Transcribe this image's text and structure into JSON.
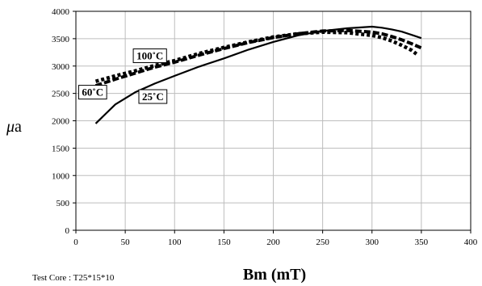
{
  "chart_data": {
    "type": "line",
    "xlabel": "Bm (mT)",
    "ylabel_mu": "μ",
    "ylabel_rest": "a",
    "note": "Test Core : T25*15*10",
    "xlim": [
      0,
      400
    ],
    "ylim": [
      0,
      4000
    ],
    "xticks": [
      0,
      50,
      100,
      150,
      200,
      250,
      300,
      350,
      400
    ],
    "yticks": [
      0,
      500,
      1000,
      1500,
      2000,
      2500,
      3000,
      3500,
      4000
    ],
    "grid": true,
    "series": [
      {
        "name": "25˚C",
        "style": "solid",
        "color": "#000000",
        "x": [
          20,
          40,
          60,
          80,
          100,
          125,
          150,
          175,
          200,
          225,
          250,
          275,
          300,
          310,
          320,
          330,
          340,
          350
        ],
        "y": [
          1950,
          2300,
          2520,
          2680,
          2820,
          2990,
          3140,
          3300,
          3440,
          3560,
          3640,
          3690,
          3720,
          3700,
          3670,
          3630,
          3570,
          3510
        ]
      },
      {
        "name": "60˚C",
        "style": "dashed",
        "color": "#000000",
        "x": [
          20,
          40,
          60,
          80,
          100,
          125,
          150,
          175,
          200,
          225,
          250,
          275,
          300,
          310,
          320,
          330,
          340,
          350
        ],
        "y": [
          2640,
          2760,
          2870,
          2980,
          3070,
          3200,
          3320,
          3430,
          3520,
          3590,
          3640,
          3650,
          3620,
          3590,
          3540,
          3480,
          3410,
          3330
        ]
      },
      {
        "name": "100˚C",
        "style": "dotted",
        "color": "#000000",
        "x": [
          20,
          40,
          60,
          80,
          100,
          125,
          150,
          175,
          200,
          225,
          250,
          275,
          300,
          310,
          320,
          330,
          340,
          345
        ],
        "y": [
          2720,
          2820,
          2910,
          3010,
          3100,
          3230,
          3340,
          3440,
          3530,
          3590,
          3620,
          3610,
          3560,
          3520,
          3460,
          3380,
          3290,
          3220
        ]
      }
    ],
    "annotations": [
      {
        "text": "100˚C",
        "x": 75,
        "y": 3195
      },
      {
        "text": "60˚C",
        "x": 17,
        "y": 2530
      },
      {
        "text": "25˚C",
        "x": 78,
        "y": 2450
      }
    ]
  }
}
